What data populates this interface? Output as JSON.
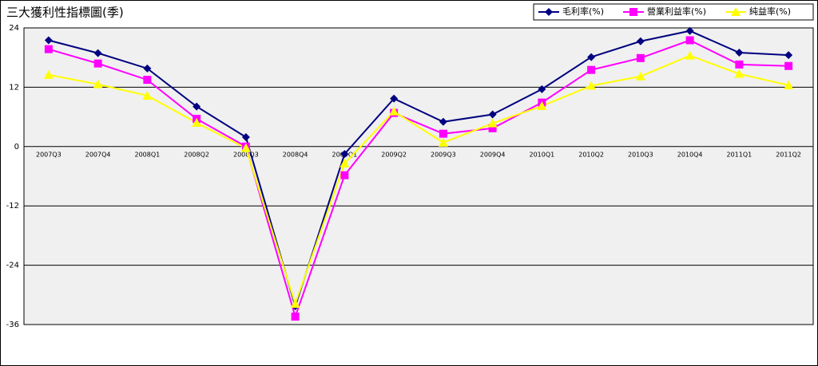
{
  "chart_data": {
    "type": "line",
    "title": "三大獲利性指標圖(季)",
    "categories": [
      "2007Q3",
      "2007Q4",
      "2008Q1",
      "2008Q2",
      "2008Q3",
      "2008Q4",
      "2009Q1",
      "2009Q2",
      "2009Q3",
      "2009Q4",
      "2010Q1",
      "2010Q2",
      "2010Q3",
      "2010Q4",
      "2011Q1",
      "2011Q2"
    ],
    "series": [
      {
        "name": "毛利率(%)",
        "color": "#000080",
        "marker": "diamond",
        "values": [
          21.5,
          18.9,
          15.8,
          8.1,
          1.9,
          -32.3,
          -1.5,
          9.7,
          5.0,
          6.5,
          11.6,
          18.1,
          21.3,
          23.4,
          19.0,
          18.5
        ]
      },
      {
        "name": "營業利益率(%)",
        "color": "#ff00ff",
        "marker": "square",
        "values": [
          19.7,
          16.8,
          13.5,
          5.6,
          0.0,
          -34.4,
          -5.8,
          6.8,
          2.6,
          3.7,
          8.9,
          15.5,
          17.9,
          21.5,
          16.6,
          16.3
        ]
      },
      {
        "name": "純益率(%)",
        "color": "#ffff00",
        "marker": "triangle",
        "values": [
          14.5,
          12.6,
          10.3,
          4.8,
          -0.3,
          -31.8,
          -3.4,
          7.1,
          0.8,
          4.7,
          8.2,
          12.3,
          14.2,
          18.4,
          14.7,
          12.4
        ]
      }
    ],
    "ylim": [
      -36,
      24
    ],
    "yticks": [
      24,
      12,
      0,
      -12,
      -24,
      -36
    ],
    "grid": true,
    "legend": "top-right"
  }
}
